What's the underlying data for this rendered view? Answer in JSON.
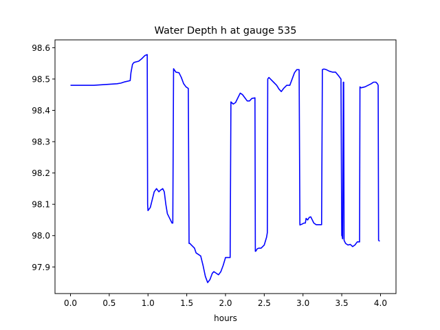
{
  "chart_data": {
    "type": "line",
    "title": "Water Depth h at gauge 535",
    "xlabel": "hours",
    "ylabel": "",
    "xlim": [
      -0.2,
      4.2
    ],
    "ylim": [
      97.815,
      98.625
    ],
    "xticks": [
      0.0,
      0.5,
      1.0,
      1.5,
      2.0,
      2.5,
      3.0,
      3.5,
      4.0
    ],
    "xtick_labels": [
      "0.0",
      "0.5",
      "1.0",
      "1.5",
      "2.0",
      "2.5",
      "3.0",
      "3.5",
      "4.0"
    ],
    "yticks": [
      97.9,
      98.0,
      98.1,
      98.2,
      98.3,
      98.4,
      98.5,
      98.6
    ],
    "ytick_labels": [
      "97.9",
      "98.0",
      "98.1",
      "98.2",
      "98.3",
      "98.4",
      "98.5",
      "98.6"
    ],
    "grid": false,
    "line_color": "#0000ff",
    "series": [
      {
        "x": [
          0.0,
          0.3,
          0.6,
          0.65,
          0.7,
          0.77,
          0.78,
          0.8,
          0.82,
          0.85,
          0.88,
          0.92,
          0.96,
          0.99,
          0.995,
          1.0,
          1.03,
          1.05,
          1.08,
          1.11,
          1.14,
          1.16,
          1.19,
          1.21,
          1.23,
          1.25,
          1.28,
          1.31,
          1.32,
          1.33,
          1.36,
          1.4,
          1.43,
          1.46,
          1.49,
          1.52,
          1.53,
          1.54,
          1.56,
          1.58,
          1.6,
          1.62,
          1.65,
          1.68,
          1.71,
          1.74,
          1.77,
          1.8,
          1.83,
          1.85,
          1.88,
          1.91,
          1.94,
          1.97,
          2.0,
          2.02,
          2.04,
          2.06,
          2.07,
          2.1,
          2.13,
          2.16,
          2.19,
          2.22,
          2.25,
          2.28,
          2.31,
          2.34,
          2.38,
          2.385,
          2.39,
          2.41,
          2.43,
          2.46,
          2.5,
          2.53,
          2.54,
          2.545,
          2.56,
          2.58,
          2.62,
          2.66,
          2.69,
          2.72,
          2.75,
          2.79,
          2.83,
          2.86,
          2.89,
          2.92,
          2.95,
          2.96,
          2.97,
          2.99,
          3.01,
          3.03,
          3.04,
          3.06,
          3.08,
          3.1,
          3.12,
          3.14,
          3.17,
          3.21,
          3.24,
          3.25,
          3.27,
          3.3,
          3.34,
          3.38,
          3.42,
          3.46,
          3.49,
          3.5,
          3.505,
          3.51,
          3.512,
          3.52,
          3.525,
          3.53,
          3.55,
          3.58,
          3.61,
          3.64,
          3.67,
          3.7,
          3.72,
          3.73,
          3.735,
          3.75,
          3.8,
          3.84,
          3.88,
          3.91,
          3.94,
          3.96,
          3.97,
          3.975,
          3.99
        ],
        "y": [
          98.48,
          98.48,
          98.485,
          98.487,
          98.491,
          98.495,
          98.52,
          98.547,
          98.553,
          98.555,
          98.557,
          98.565,
          98.575,
          98.578,
          98.1,
          98.08,
          98.09,
          98.11,
          98.14,
          98.15,
          98.14,
          98.145,
          98.15,
          98.14,
          98.1,
          98.07,
          98.055,
          98.04,
          98.04,
          98.533,
          98.522,
          98.52,
          98.505,
          98.485,
          98.475,
          98.47,
          97.975,
          97.975,
          97.97,
          97.965,
          97.96,
          97.945,
          97.94,
          97.935,
          97.905,
          97.87,
          97.85,
          97.86,
          97.88,
          97.885,
          97.88,
          97.875,
          97.885,
          97.905,
          97.93,
          97.93,
          97.93,
          97.93,
          98.427,
          98.42,
          98.425,
          98.44,
          98.455,
          98.45,
          98.44,
          98.43,
          98.43,
          98.438,
          98.44,
          97.95,
          97.95,
          97.958,
          97.96,
          97.96,
          97.97,
          97.995,
          98.01,
          98.5,
          98.505,
          98.5,
          98.49,
          98.48,
          98.468,
          98.46,
          98.47,
          98.48,
          98.48,
          98.5,
          98.52,
          98.53,
          98.53,
          98.034,
          98.035,
          98.037,
          98.04,
          98.04,
          98.055,
          98.05,
          98.058,
          98.06,
          98.05,
          98.04,
          98.035,
          98.035,
          98.035,
          98.53,
          98.532,
          98.53,
          98.525,
          98.522,
          98.522,
          98.51,
          98.5,
          98.0,
          98.0,
          97.99,
          97.99,
          98.49,
          98.49,
          97.985,
          97.975,
          97.97,
          97.972,
          97.965,
          97.97,
          97.98,
          97.98,
          97.98,
          98.475,
          98.472,
          98.475,
          98.48,
          98.485,
          98.49,
          98.49,
          98.485,
          98.48,
          97.985,
          97.982
        ]
      }
    ]
  }
}
